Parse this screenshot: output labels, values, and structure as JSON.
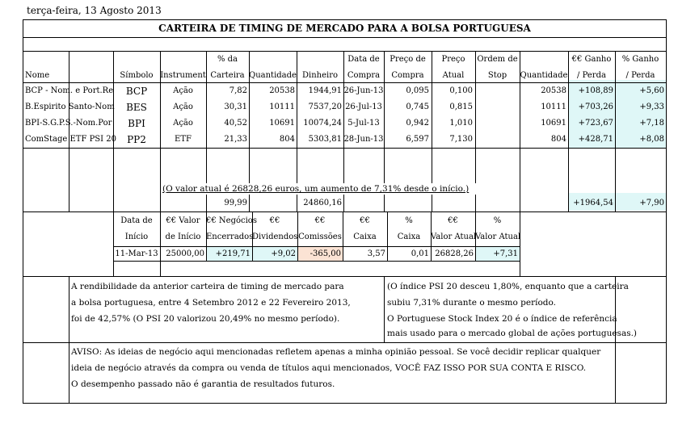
{
  "date": "terça-feira, 13 Agosto 2013",
  "title": "CARTEIRA DE TIMING DE MERCADO PARA A BOLSA PORTUGUESA",
  "headers": {
    "nome": "Nome",
    "simbolo": "Símbolo",
    "instrumento": "Instrument",
    "carteira": [
      "% da",
      "Carteira"
    ],
    "quantidade": "Quantidade",
    "dinheiro": "Dinheiro",
    "data_compra": [
      "Data de",
      "Compra"
    ],
    "preco_compra": [
      "Preço de",
      "Compra"
    ],
    "preco_atual": [
      "Preço",
      "Atual"
    ],
    "ordem_stop": [
      "Ordem de",
      "Stop"
    ],
    "quantidade2": "Quantidade",
    "ganho_eur": [
      "€€ Ganho",
      "/ Perda"
    ],
    "ganho_pct": [
      "% Ganho",
      "/ Perda"
    ]
  },
  "rows": [
    {
      "nome": "BCP - Nom. e Port.Re",
      "simbolo": "BCP",
      "instrumento": "Ação",
      "carteira": "7,82",
      "quantidade": "20538",
      "dinheiro": "1944,91",
      "data": "26-Jun-13",
      "preco_compra": "0,095",
      "preco_atual": "0,100",
      "stop": "",
      "quantidade2": "20538",
      "ganho_eur": "+108,89",
      "ganho_pct": "+5,60"
    },
    {
      "nome": "B.Espirito Santo-Nom",
      "simbolo": "BES",
      "instrumento": "Ação",
      "carteira": "30,31",
      "quantidade": "10111",
      "dinheiro": "7537,20",
      "data": "26-Jul-13",
      "preco_compra": "0,745",
      "preco_atual": "0,815",
      "stop": "",
      "quantidade2": "10111",
      "ganho_eur": "+703,26",
      "ganho_pct": "+9,33"
    },
    {
      "nome": "BPI-S.G.P.S.-Nom.Por",
      "simbolo": "BPI",
      "instrumento": "Ação",
      "carteira": "40,52",
      "quantidade": "10691",
      "dinheiro": "10074,24",
      "data": "5-Jul-13",
      "preco_compra": "0,942",
      "preco_atual": "1,010",
      "stop": "",
      "quantidade2": "10691",
      "ganho_eur": "+723,67",
      "ganho_pct": "+7,18"
    },
    {
      "nome": "ComStage ETF PSI 20",
      "simbolo": "PP2",
      "instrumento": "ETF",
      "carteira": "21,33",
      "quantidade": "804",
      "dinheiro": "5303,81",
      "data": "28-Jun-13",
      "preco_compra": "6,597",
      "preco_atual": "7,130",
      "stop": "",
      "quantidade2": "804",
      "ganho_eur": "+428,71",
      "ganho_pct": "+8,08"
    }
  ],
  "summary_sentence": "(O valor atual é 26828,26 euros, um aumento de 7,31% desde o início.)",
  "totals": {
    "carteira": "99,99",
    "dinheiro": "24860,16",
    "ganho_eur": "+1964,54",
    "ganho_pct": "+7,90"
  },
  "second_table": {
    "headers": [
      [
        "Data de",
        "Início"
      ],
      [
        "€€ Valor",
        "de Início"
      ],
      [
        "€€ Negócios",
        "Encerrados"
      ],
      [
        "€€",
        "Dividendos"
      ],
      [
        "€€",
        "Comissões"
      ],
      [
        "€€",
        "Caixa"
      ],
      [
        "%",
        "Caixa"
      ],
      [
        "€€",
        "Valor Atual"
      ],
      [
        "%",
        "Valor Atual"
      ]
    ],
    "values": [
      "11-Mar-13",
      "25000,00",
      "+219,71",
      "+9,02",
      "-365,00",
      "3,57",
      "0,01",
      "26828,26",
      "+7,31"
    ]
  },
  "notes_left": [
    "A rendibilidade da anterior carteira de timing de mercado para",
    "a bolsa portuguesa, entre 4 Setembro 2012 e 22 Fevereiro 2013,",
    "foi de 42,57% (O PSI 20 valorizou 20,49% no mesmo período)."
  ],
  "notes_right": [
    "(O índice PSI 20 desceu 1,80%, enquanto que a carteira",
    "subiu 7,31% durante o mesmo período.",
    "O Portuguese Stock Index 20 é o índice de referência",
    "mais usado para o mercado global de ações portuguesas.)"
  ],
  "disclaimer": [
    "AVISO: As ideias de negócio aqui mencionadas refletem apenas a minha opinião pessoal. Se você decidir replicar qualquer",
    "ideia de negócio através da compra ou venda de títulos aqui mencionados, VOCÊ FAZ ISSO POR SUA CONTA E RISCO.",
    "O desempenho passado não é garantia de resultados futuros."
  ],
  "colors": {
    "gain_highlight": "#dff7f7",
    "commission_highlight": "#fbe3d4"
  }
}
